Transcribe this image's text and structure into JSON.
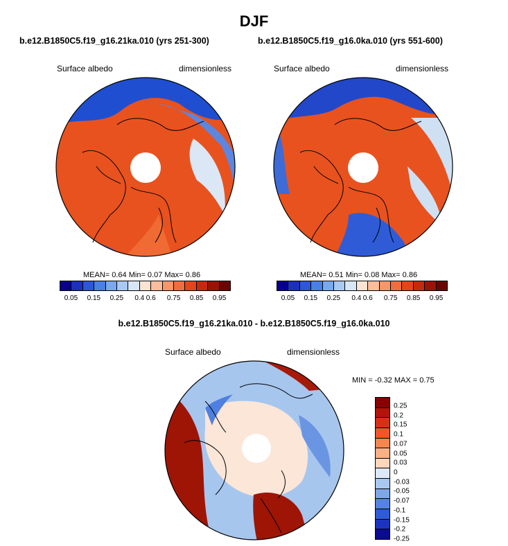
{
  "title": "DJF",
  "panels": [
    {
      "case": "b.e12.B1850C5.f19_g16.21ka.010 (yrs 251-300)",
      "variable": "Surface albedo",
      "units": "dimensionless",
      "stats": "MEAN=   0.64  Min=   0.07  Max=   0.86"
    },
    {
      "case": "b.e12.B1850C5.f19_g16.0ka.010 (yrs 551-600)",
      "variable": "Surface albedo",
      "units": "dimensionless",
      "stats": "MEAN=   0.51  Min=   0.08  Max=   0.86"
    }
  ],
  "difference": {
    "title": "b.e12.B1850C5.f19_g16.21ka.010 - b.e12.B1850C5.f19_g16.0ka.010",
    "variable": "Surface albedo",
    "units": "dimensionless",
    "stats": "MIN =  -0.32 MAX =   0.75"
  },
  "colorbar_abs": {
    "colors": [
      "#08008c",
      "#1c2fbf",
      "#2f55d9",
      "#4a7fe6",
      "#79a8ef",
      "#a9c9f2",
      "#d6e6f6",
      "#fde3d2",
      "#fbbd9c",
      "#f8956b",
      "#f26c40",
      "#e4451b",
      "#c62a0e",
      "#9b1306",
      "#6a0503"
    ],
    "labels": [
      "0.05",
      "0.15",
      "0.25",
      "0.4",
      "0.6",
      "0.75",
      "0.85",
      "0.95"
    ]
  },
  "colorbar_diff": {
    "colors": [
      "#8a0000",
      "#b3140a",
      "#d43214",
      "#ee5826",
      "#f6864f",
      "#fab086",
      "#fcd6bd",
      "#dde9f7",
      "#a9c8ef",
      "#7ea7e8",
      "#5683df",
      "#2e5bd6",
      "#1c33c0",
      "#0a0b92"
    ],
    "labels": [
      "0.25",
      "0.2",
      "0.15",
      "0.1",
      "0.07",
      "0.05",
      "0.03",
      "0",
      "-0.03",
      "-0.05",
      "-0.07",
      "-0.1",
      "-0.15",
      "-0.2",
      "-0.25"
    ]
  },
  "map_fields": [
    {
      "ocean_north": "#1f4fd0",
      "land": "#e8521f",
      "sea_ice": "#f06a33",
      "open": "#dbe7f5",
      "atlantic": "#5d86df",
      "pacific_edge": "#2a5ad2",
      "pole": "#ffffff"
    },
    {
      "ocean_north": "#2248c9",
      "land": "#e8521f",
      "sea_ice": "#e3471a",
      "open": "#cfe0f3",
      "atlantic": "#2f5cd6",
      "pacific_edge": "#3d6bd8",
      "pole": "#ffffff"
    },
    {
      "ice_sheets": "#9e1505",
      "atlantic_edge": "#a71a08",
      "neutral": "#fbe6d8",
      "ocean": "#a6c6ee",
      "blue_patch": "#6a95e2",
      "pole": "#ffffff"
    }
  ]
}
